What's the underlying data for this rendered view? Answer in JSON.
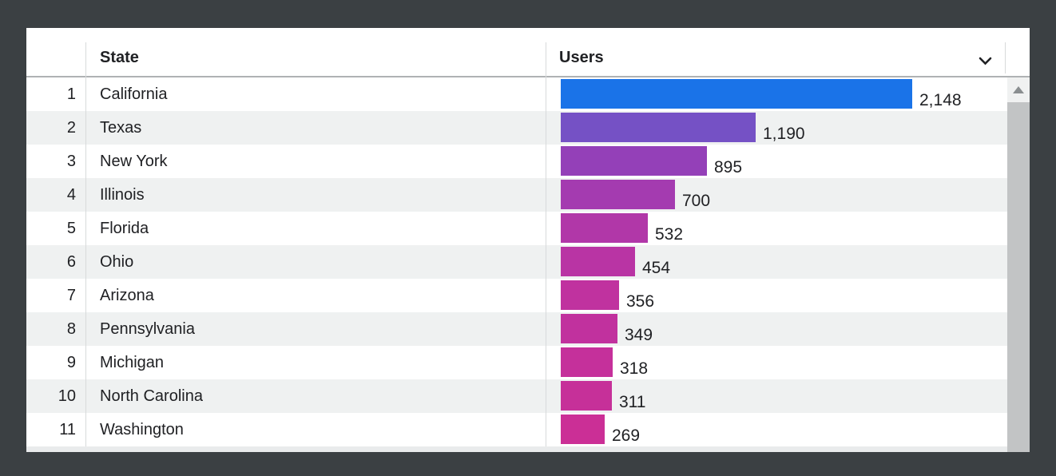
{
  "frame": {
    "background": "#3b4043",
    "card_background": "#ffffff"
  },
  "header": {
    "state_label": "State",
    "users_label": "Users",
    "sort_icon": "chevron-down-icon"
  },
  "colors": {
    "frame_bg": "#3b4043",
    "text": "#202124",
    "row_stripe": "#eff1f1",
    "divider": "#d8dadb",
    "header_border": "#afb2b4",
    "scroll_track": "#f0f1f1",
    "scroll_thumb": "#c2c4c5",
    "scroll_arrow": "#8a8e90",
    "top_bar_color": "#1a73e8",
    "bottom_bar_color": "#cb2f96"
  },
  "table": {
    "max_users": 2148,
    "rows": [
      {
        "rank": "1",
        "state": "California",
        "users": 2148,
        "users_label": "2,148",
        "bar_color": "#1a73e8"
      },
      {
        "rank": "2",
        "state": "Texas",
        "users": 1190,
        "users_label": "1,190",
        "bar_color": "#7551c5"
      },
      {
        "rank": "3",
        "state": "New York",
        "users": 895,
        "users_label": "895",
        "bar_color": "#9440b8"
      },
      {
        "rank": "4",
        "state": "Illinois",
        "users": 700,
        "users_label": "700",
        "bar_color": "#a43bb0"
      },
      {
        "rank": "5",
        "state": "Florida",
        "users": 532,
        "users_label": "532",
        "bar_color": "#b137a8"
      },
      {
        "rank": "6",
        "state": "Ohio",
        "users": 454,
        "users_label": "454",
        "bar_color": "#b934a4"
      },
      {
        "rank": "7",
        "state": "Arizona",
        "users": 356,
        "users_label": "356",
        "bar_color": "#c0329f"
      },
      {
        "rank": "8",
        "state": "Pennsylvania",
        "users": 349,
        "users_label": "349",
        "bar_color": "#c1319e"
      },
      {
        "rank": "9",
        "state": "Michigan",
        "users": 318,
        "users_label": "318",
        "bar_color": "#c5309b"
      },
      {
        "rank": "10",
        "state": "North Carolina",
        "users": 311,
        "users_label": "311",
        "bar_color": "#c63099"
      },
      {
        "rank": "11",
        "state": "Washington",
        "users": 269,
        "users_label": "269",
        "bar_color": "#cb2f96"
      }
    ]
  },
  "scrollbar": {
    "up_arrow_icon": "triangle-up-icon"
  },
  "chart_data": {
    "type": "bar",
    "orientation": "horizontal",
    "title": "",
    "xlabel": "",
    "ylabel": "",
    "categories": [
      "California",
      "Texas",
      "New York",
      "Illinois",
      "Florida",
      "Ohio",
      "Arizona",
      "Pennsylvania",
      "Michigan",
      "North Carolina",
      "Washington"
    ],
    "series": [
      {
        "name": "Users",
        "values": [
          2148,
          1190,
          895,
          700,
          532,
          454,
          356,
          349,
          318,
          311,
          269
        ]
      }
    ],
    "data_labels": [
      "2,148",
      "1,190",
      "895",
      "700",
      "532",
      "454",
      "356",
      "349",
      "318",
      "311",
      "269"
    ],
    "bar_colors": [
      "#1a73e8",
      "#7551c5",
      "#9440b8",
      "#a43bb0",
      "#b137a8",
      "#b934a4",
      "#c0329f",
      "#c1319e",
      "#c5309b",
      "#c63099",
      "#cb2f96"
    ],
    "xlim": [
      0,
      2148
    ],
    "grid": false,
    "legend": false
  }
}
